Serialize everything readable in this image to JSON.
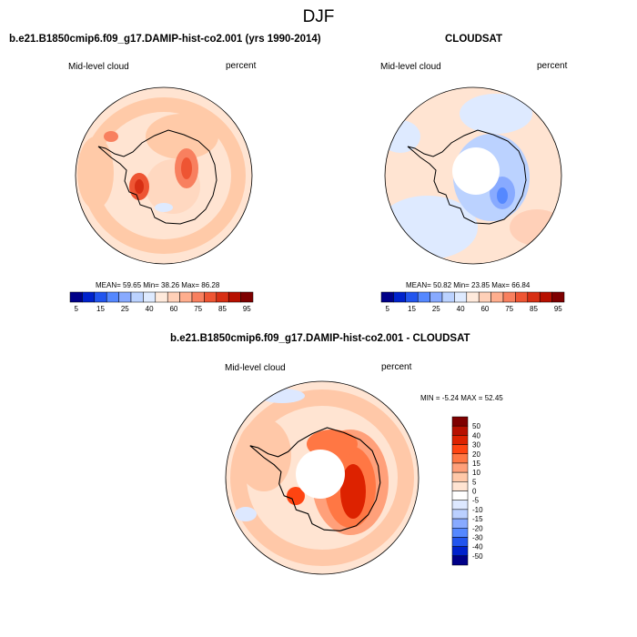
{
  "season": "DJF",
  "panels": {
    "model": {
      "title": "b.e21.B1850cmip6.f09_g17.DAMIP-hist-co2.001 (yrs 1990-2014)",
      "left_label": "Mid-level cloud",
      "right_label": "percent",
      "stats": "MEAN=  59.65  Min=  38.26  Max=  86.28"
    },
    "obs": {
      "title": "CLOUDSAT",
      "left_label": "Mid-level cloud",
      "right_label": "percent",
      "stats": "MEAN=  50.82  Min=  23.85  Max=  66.84"
    },
    "diff": {
      "title": "b.e21.B1850cmip6.f09_g17.DAMIP-hist-co2.001 - CLOUDSAT",
      "left_label": "Mid-level cloud",
      "right_label": "percent",
      "stats": "MIN = -5.24 MAX =  52.45"
    }
  },
  "colorbar_abs": {
    "colors": [
      "#000088",
      "#0022cc",
      "#2255ee",
      "#5588ff",
      "#88aaff",
      "#bbd2ff",
      "#deeaff",
      "#ffeadc",
      "#ffd0b8",
      "#ffae8e",
      "#f8805f",
      "#ee5533",
      "#d72f14",
      "#b71000",
      "#7e0000"
    ],
    "labels": [
      "5",
      "15",
      "25",
      "40",
      "60",
      "75",
      "85",
      "95"
    ]
  },
  "colorbar_diff": {
    "colors": [
      "#7e0000",
      "#b71000",
      "#dd2200",
      "#ff4411",
      "#ff7744",
      "#ffa07a",
      "#ffc8a8",
      "#ffe4d2",
      "#ffffff",
      "#dde8ff",
      "#bbd0ff",
      "#88aaff",
      "#5588ff",
      "#2255ee",
      "#0022cc",
      "#000088"
    ],
    "labels": [
      "50",
      "40",
      "30",
      "20",
      "15",
      "10",
      "5",
      "0",
      "-5",
      "-10",
      "-15",
      "-20",
      "-30",
      "-40",
      "-50"
    ]
  }
}
